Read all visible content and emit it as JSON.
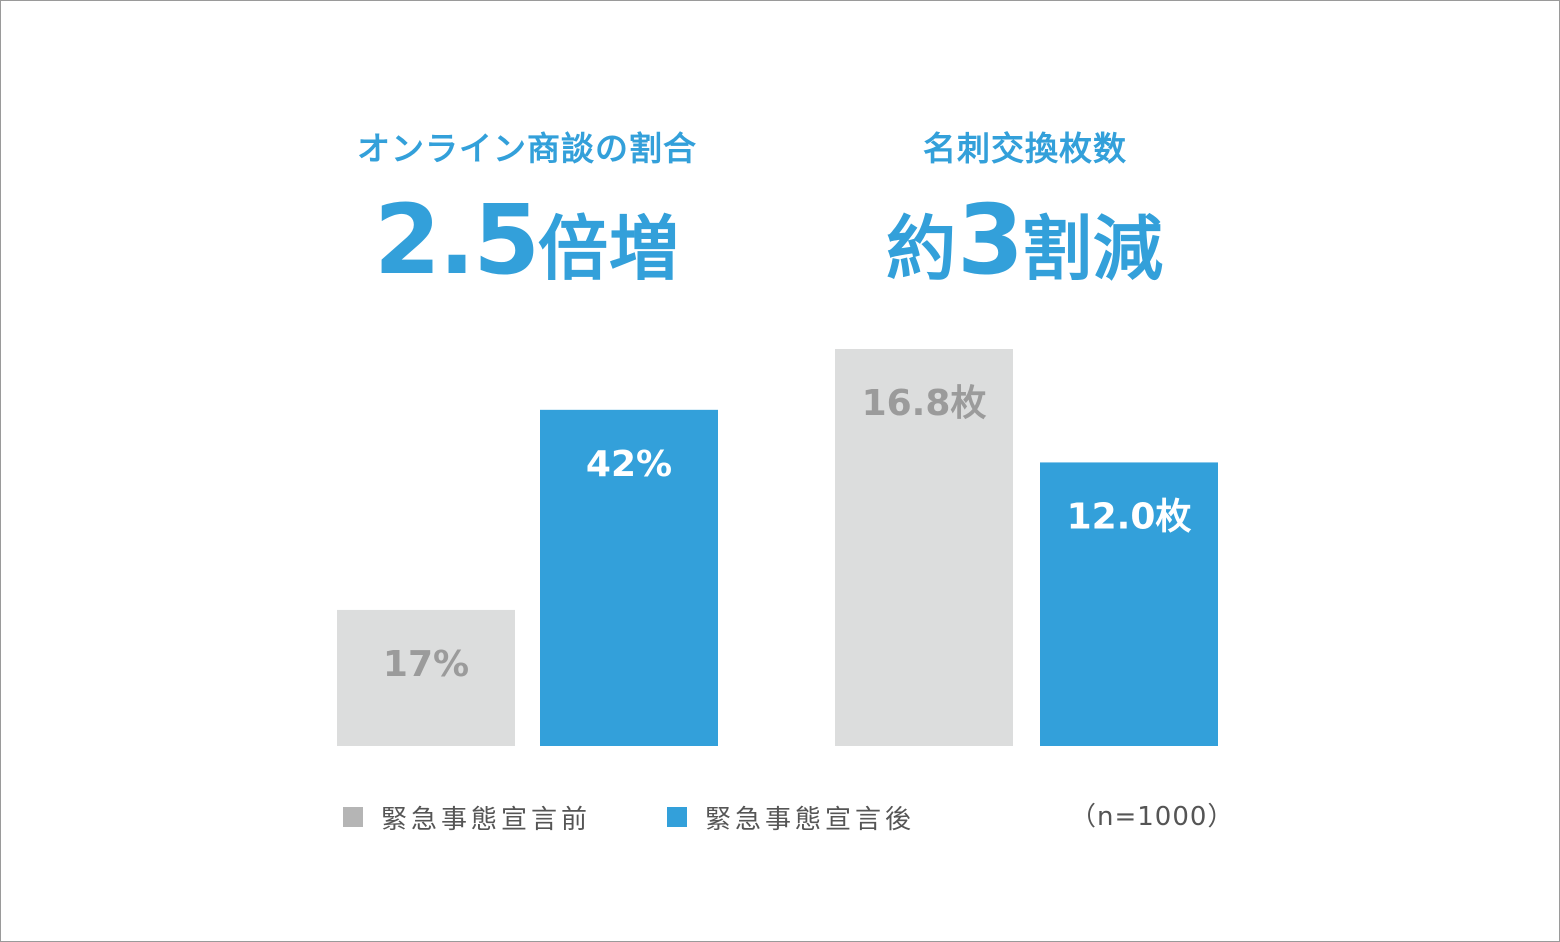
{
  "headlines": {
    "left": {
      "subtitle": "オンライン商談の割合",
      "value": "2.5",
      "suffix": "倍増"
    },
    "right": {
      "subtitle": "名刺交換枚数",
      "prefix": "約",
      "value": "3",
      "suffix": "割減"
    }
  },
  "legend": {
    "before": "緊急事態宣言前",
    "after": "緊急事態宣言後",
    "sample": "（n=1000）"
  },
  "colors": {
    "accent": "#33a0da",
    "before_bar": "#dcdddd",
    "before_swatch": "#b5b5b5",
    "before_label": "#9b9b9b",
    "after_bar": "#33a0da",
    "after_label": "#ffffff",
    "legend_text": "#555555"
  },
  "chart_data": [
    {
      "type": "bar",
      "categories": [
        "緊急事態宣言前",
        "緊急事態宣言後"
      ],
      "values": [
        17,
        42
      ],
      "data_labels": [
        "17%",
        "42%"
      ],
      "ylim": [
        0,
        49.6
      ],
      "grid": false
    },
    {
      "type": "bar",
      "categories": [
        "緊急事態宣言前",
        "緊急事態宣言後"
      ],
      "values": [
        16.8,
        12.0
      ],
      "data_labels": [
        "16.8枚",
        "12.0枚"
      ],
      "ylim": [
        0,
        16.8
      ],
      "grid": false
    }
  ]
}
